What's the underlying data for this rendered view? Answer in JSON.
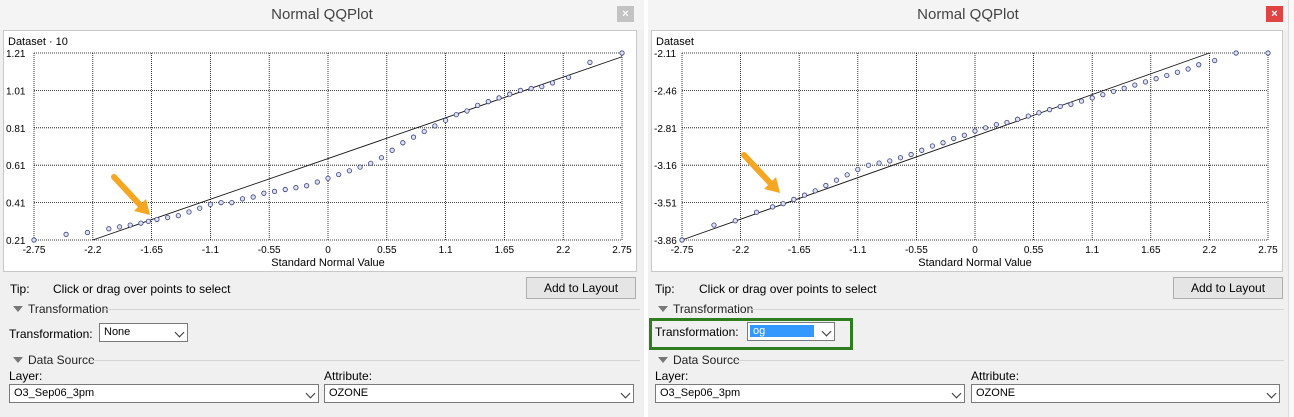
{
  "colors": {
    "highlight": "#2e7d1f",
    "arrow": "#f5a623",
    "point_fill": "#dde3f5",
    "point_stroke": "#3a3f7a"
  },
  "left": {
    "title": "Normal QQPlot",
    "close_label": "×",
    "tip_label": "Tip:",
    "tip_text": "Click or drag over points to select",
    "add_to_layout": "Add to Layout",
    "transformation_section": "Transformation",
    "transformation_label": "Transformation:",
    "transformation_value": "None",
    "data_source_section": "Data Source",
    "layer_label": "Layer:",
    "layer_value": "O3_Sep06_3pm",
    "attribute_label": "Attribute:",
    "attribute_value": "OZONE",
    "chart_data": {
      "type": "scatter",
      "title": "Dataset · 10",
      "xlabel": "Standard Normal Value",
      "ylabel": "",
      "xlim": [
        -2.75,
        2.75
      ],
      "ylim": [
        0.21,
        1.21
      ],
      "xticks": [
        "-2.75",
        "-2.2",
        "-1.65",
        "-1.1",
        "-0.55",
        "0",
        "0.55",
        "1.1",
        "1.65",
        "2.2",
        "2.75"
      ],
      "yticks": [
        "1.21",
        "1.01",
        "0.81",
        "0.61",
        "0.41",
        "0.21"
      ],
      "reference_line": [
        [
          -2.2,
          0.21
        ],
        [
          2.75,
          1.19
        ]
      ],
      "points": [
        [
          -2.75,
          0.21
        ],
        [
          -2.45,
          0.24
        ],
        [
          -2.25,
          0.25
        ],
        [
          -2.05,
          0.27
        ],
        [
          -1.95,
          0.28
        ],
        [
          -1.85,
          0.29
        ],
        [
          -1.75,
          0.3
        ],
        [
          -1.68,
          0.31
        ],
        [
          -1.6,
          0.32
        ],
        [
          -1.5,
          0.33
        ],
        [
          -1.4,
          0.34
        ],
        [
          -1.3,
          0.36
        ],
        [
          -1.2,
          0.38
        ],
        [
          -1.1,
          0.4
        ],
        [
          -1.0,
          0.41
        ],
        [
          -0.9,
          0.41
        ],
        [
          -0.8,
          0.43
        ],
        [
          -0.7,
          0.44
        ],
        [
          -0.6,
          0.46
        ],
        [
          -0.5,
          0.47
        ],
        [
          -0.4,
          0.48
        ],
        [
          -0.3,
          0.49
        ],
        [
          -0.2,
          0.5
        ],
        [
          -0.1,
          0.52
        ],
        [
          0.0,
          0.54
        ],
        [
          0.1,
          0.56
        ],
        [
          0.2,
          0.58
        ],
        [
          0.3,
          0.6
        ],
        [
          0.4,
          0.62
        ],
        [
          0.5,
          0.65
        ],
        [
          0.6,
          0.69
        ],
        [
          0.7,
          0.73
        ],
        [
          0.8,
          0.76
        ],
        [
          0.9,
          0.79
        ],
        [
          1.0,
          0.82
        ],
        [
          1.1,
          0.85
        ],
        [
          1.2,
          0.88
        ],
        [
          1.3,
          0.9
        ],
        [
          1.4,
          0.93
        ],
        [
          1.5,
          0.95
        ],
        [
          1.6,
          0.97
        ],
        [
          1.7,
          0.99
        ],
        [
          1.8,
          1.01
        ],
        [
          1.9,
          1.02
        ],
        [
          2.0,
          1.03
        ],
        [
          2.1,
          1.05
        ],
        [
          2.25,
          1.08
        ],
        [
          2.45,
          1.16
        ],
        [
          2.75,
          1.21
        ]
      ]
    }
  },
  "right": {
    "title": "Normal QQPlot",
    "close_label": "×",
    "tip_label": "Tip:",
    "tip_text": "Click or drag over points to select",
    "add_to_layout": "Add to Layout",
    "transformation_section": "Transformation",
    "transformation_label": "Transformation:",
    "transformation_value": "og",
    "data_source_section": "Data Source",
    "layer_label": "Layer:",
    "layer_value": "O3_Sep06_3pm",
    "attribute_label": "Attribute:",
    "attribute_value": "OZONE",
    "chart_data": {
      "type": "scatter",
      "title": "Dataset",
      "xlabel": "Standard Normal Value",
      "ylabel": "",
      "xlim": [
        -2.75,
        2.75
      ],
      "ylim": [
        -3.86,
        -2.11
      ],
      "xticks": [
        "-2.75",
        "-2.2",
        "-1.65",
        "-1.1",
        "-0.55",
        "0",
        "0.55",
        "1.1",
        "1.65",
        "2.2",
        "2.75"
      ],
      "yticks": [
        "-2.11",
        "-2.46",
        "-2.81",
        "-3.16",
        "-3.51",
        "-3.86"
      ],
      "reference_line": [
        [
          -2.75,
          -3.86
        ],
        [
          2.2,
          -2.11
        ]
      ],
      "points": [
        [
          -2.75,
          -3.86
        ],
        [
          -2.45,
          -3.72
        ],
        [
          -2.25,
          -3.68
        ],
        [
          -2.05,
          -3.6
        ],
        [
          -1.9,
          -3.55
        ],
        [
          -1.8,
          -3.52
        ],
        [
          -1.7,
          -3.48
        ],
        [
          -1.6,
          -3.44
        ],
        [
          -1.5,
          -3.4
        ],
        [
          -1.4,
          -3.35
        ],
        [
          -1.3,
          -3.3
        ],
        [
          -1.2,
          -3.25
        ],
        [
          -1.1,
          -3.2
        ],
        [
          -1.0,
          -3.16
        ],
        [
          -0.9,
          -3.14
        ],
        [
          -0.8,
          -3.12
        ],
        [
          -0.7,
          -3.09
        ],
        [
          -0.6,
          -3.06
        ],
        [
          -0.5,
          -3.02
        ],
        [
          -0.4,
          -2.98
        ],
        [
          -0.3,
          -2.95
        ],
        [
          -0.2,
          -2.91
        ],
        [
          -0.1,
          -2.88
        ],
        [
          0.0,
          -2.84
        ],
        [
          0.1,
          -2.81
        ],
        [
          0.2,
          -2.78
        ],
        [
          0.3,
          -2.76
        ],
        [
          0.4,
          -2.73
        ],
        [
          0.5,
          -2.7
        ],
        [
          0.6,
          -2.67
        ],
        [
          0.7,
          -2.64
        ],
        [
          0.8,
          -2.61
        ],
        [
          0.9,
          -2.59
        ],
        [
          1.0,
          -2.56
        ],
        [
          1.1,
          -2.53
        ],
        [
          1.2,
          -2.5
        ],
        [
          1.3,
          -2.47
        ],
        [
          1.4,
          -2.44
        ],
        [
          1.5,
          -2.41
        ],
        [
          1.6,
          -2.38
        ],
        [
          1.7,
          -2.35
        ],
        [
          1.8,
          -2.32
        ],
        [
          1.9,
          -2.29
        ],
        [
          2.0,
          -2.26
        ],
        [
          2.1,
          -2.22
        ],
        [
          2.25,
          -2.18
        ],
        [
          2.45,
          -2.11
        ],
        [
          2.75,
          -2.11
        ]
      ]
    }
  }
}
